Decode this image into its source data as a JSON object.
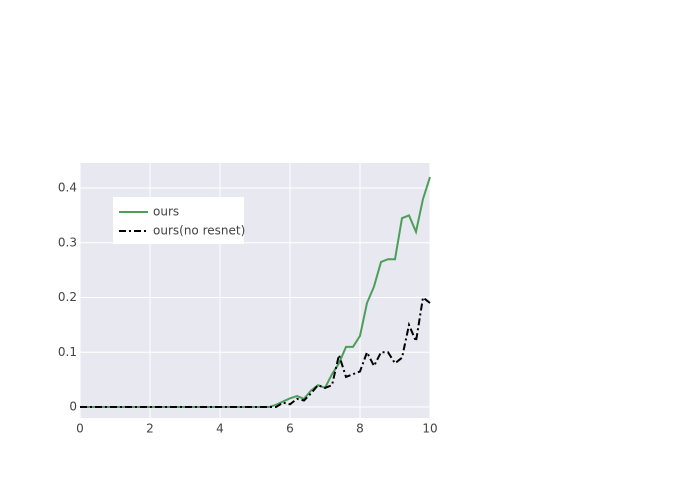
{
  "chart_data": {
    "type": "line",
    "x": [
      0,
      1,
      2,
      3,
      4,
      5,
      5.4,
      5.6,
      5.8,
      6.0,
      6.2,
      6.4,
      6.6,
      6.8,
      7.0,
      7.2,
      7.4,
      7.6,
      7.8,
      8.0,
      8.2,
      8.4,
      8.6,
      8.8,
      9.0,
      9.2,
      9.4,
      9.6,
      9.8,
      10.0
    ],
    "series": [
      {
        "name": "ours",
        "color": "#4c9e5a",
        "dash": "solid",
        "values": [
          0,
          0,
          0,
          0,
          0,
          0,
          0,
          0.004,
          0.01,
          0.016,
          0.02,
          0.015,
          0.03,
          0.04,
          0.035,
          0.06,
          0.08,
          0.11,
          0.11,
          0.13,
          0.19,
          0.22,
          0.265,
          0.27,
          0.27,
          0.345,
          0.35,
          0.32,
          0.38,
          0.42
        ]
      },
      {
        "name": "ours(no resnet)",
        "color": "#000000",
        "dash": "dashdot",
        "values": [
          0,
          0,
          0,
          0,
          0,
          0,
          0,
          0,
          0.008,
          0.005,
          0.015,
          0.012,
          0.025,
          0.04,
          0.035,
          0.04,
          0.095,
          0.055,
          0.06,
          0.065,
          0.1,
          0.075,
          0.1,
          0.1,
          0.08,
          0.09,
          0.15,
          0.12,
          0.2,
          0.19
        ]
      }
    ],
    "xlim": [
      0,
      10
    ],
    "xticks": [
      0,
      2,
      4,
      6,
      8,
      10
    ],
    "ylim": [
      -0.02,
      0.4457
    ],
    "yticks": [
      0,
      0.1,
      0.2,
      0.3,
      0.4
    ],
    "grid": true
  }
}
